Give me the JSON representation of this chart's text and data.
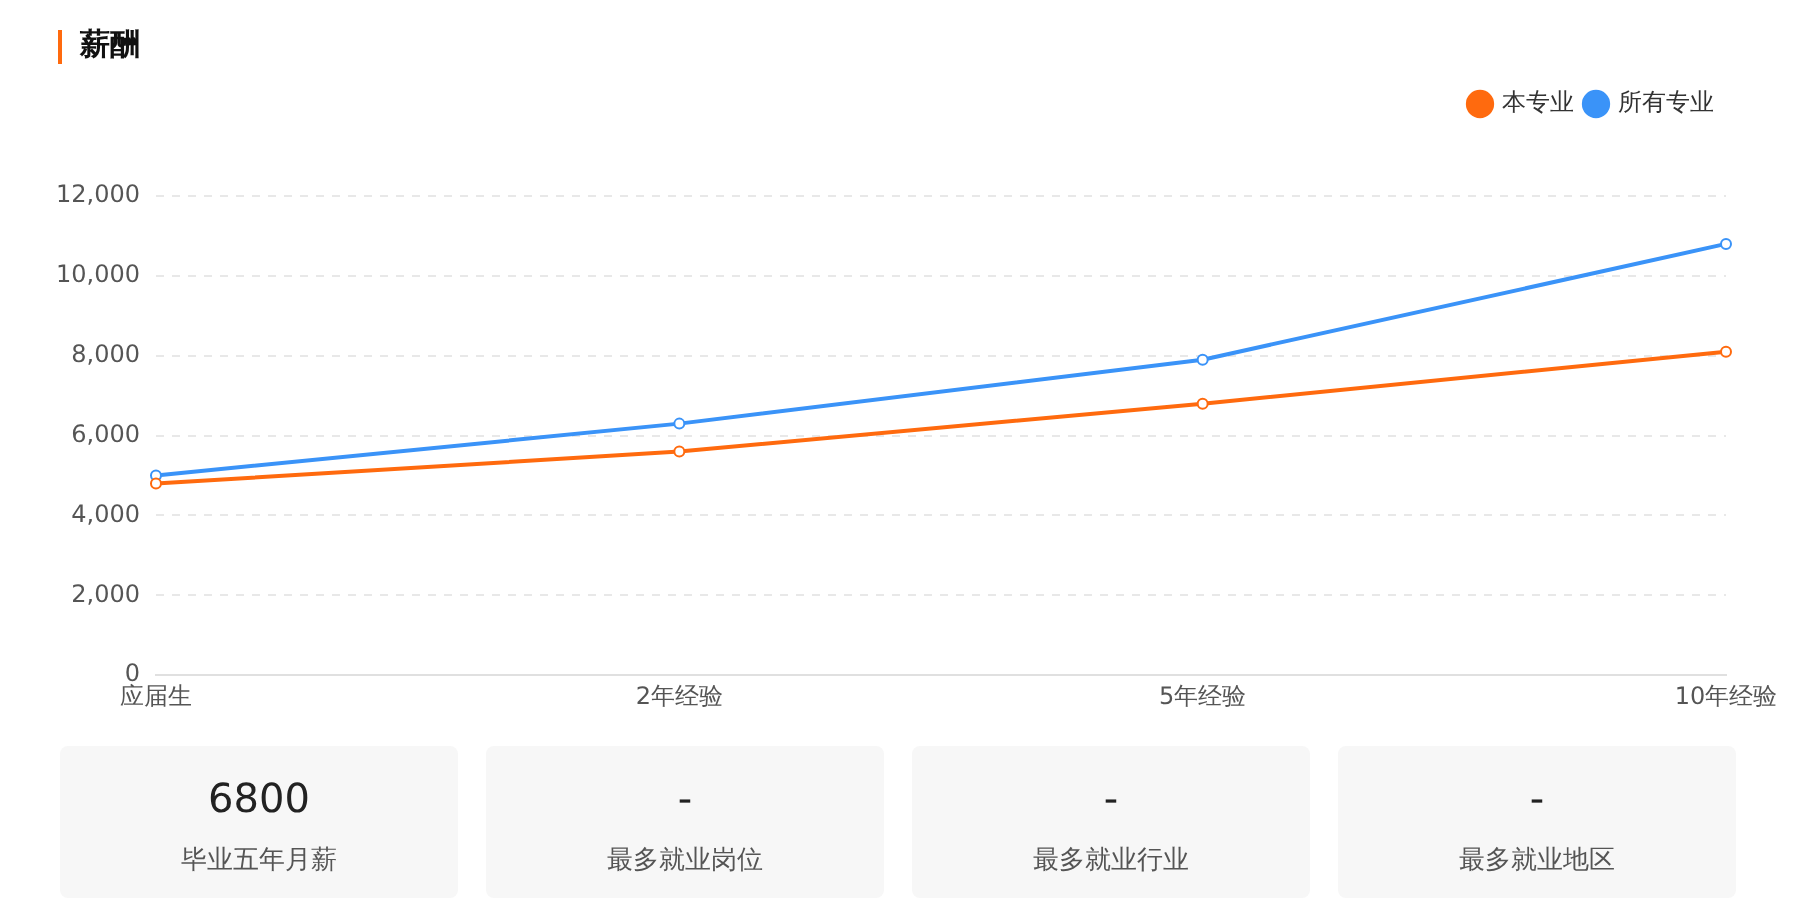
{
  "chart_data": [
    {
      "type": "line",
      "title": "薪酬",
      "categories": [
        "应届生",
        "2年经验",
        "5年经验",
        "10年经验"
      ],
      "series": [
        {
          "name": "本专业",
          "color": "#ff6a0e",
          "values": [
            4800,
            5600,
            6800,
            8100
          ]
        },
        {
          "name": "所有专业",
          "color": "#3a93f8",
          "values": [
            5000,
            6300,
            7900,
            10800
          ]
        }
      ],
      "ylim": [
        0,
        12000
      ],
      "yticks": [
        {
          "value": 0,
          "label": "0"
        },
        {
          "value": 2000,
          "label": "2,000"
        },
        {
          "value": 4000,
          "label": "4,000"
        },
        {
          "value": 6000,
          "label": "6,000"
        },
        {
          "value": 8000,
          "label": "8,000"
        },
        {
          "value": 10000,
          "label": "10,000"
        },
        {
          "value": 12000,
          "label": "12,000"
        }
      ],
      "grid": "y",
      "legend": "top right",
      "marker": "circle",
      "line_style": "solid"
    },
    {
      "type": "other",
      "annotations": [
        "6800",
        "毕业五年月薪",
        "-",
        "最多就业岗位",
        "-",
        "最多就业行业",
        "-",
        "最多就业地区"
      ]
    }
  ]
}
